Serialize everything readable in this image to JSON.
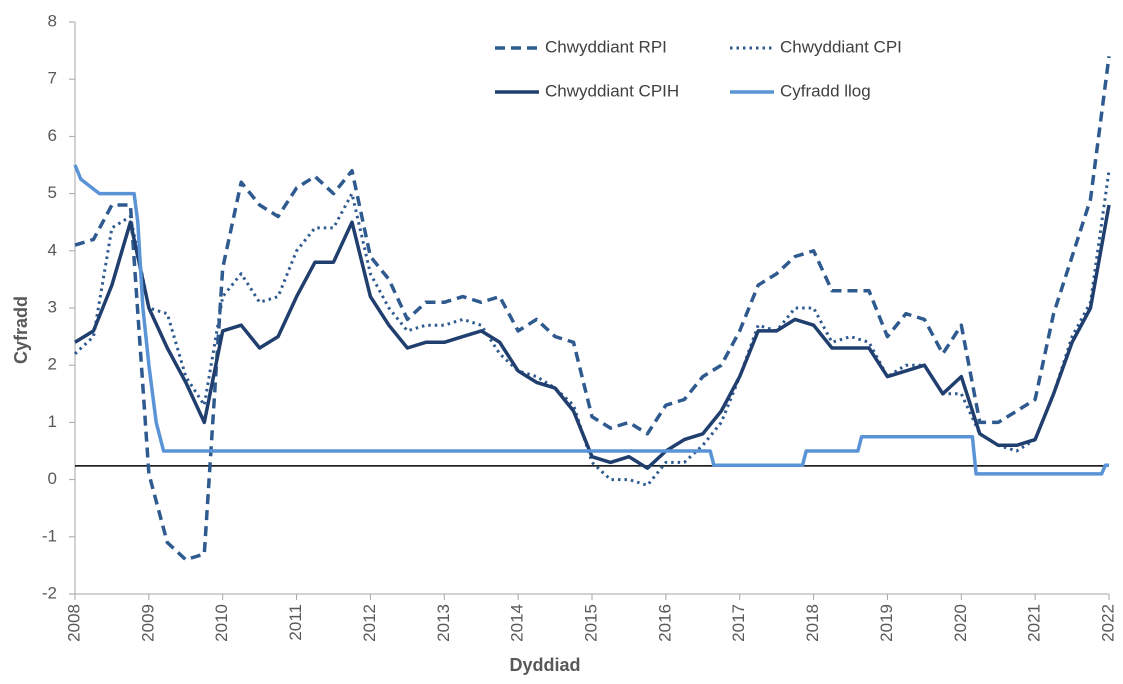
{
  "chart_data": {
    "type": "line",
    "x_label": "Dyddiad",
    "y_label": "Cyfradd",
    "xlim": [
      2008,
      2022
    ],
    "xticks": [
      2008,
      2009,
      2010,
      2011,
      2012,
      2013,
      2014,
      2015,
      2016,
      2017,
      2018,
      2019,
      2020,
      2021,
      2022
    ],
    "ylim": [
      -2,
      8
    ],
    "yticks": [
      -2,
      -1,
      0,
      1,
      2,
      3,
      4,
      5,
      6,
      7,
      8
    ],
    "grid": false,
    "legend": "top",
    "reference_line": 0.24,
    "x": [
      2008,
      2008.25,
      2008.5,
      2008.75,
      2009,
      2009.25,
      2009.5,
      2009.75,
      2010,
      2010.25,
      2010.5,
      2010.75,
      2011,
      2011.25,
      2011.5,
      2011.75,
      2012,
      2012.25,
      2012.5,
      2012.75,
      2013,
      2013.25,
      2013.5,
      2013.75,
      2014,
      2014.25,
      2014.5,
      2014.75,
      2015,
      2015.25,
      2015.5,
      2015.75,
      2016,
      2016.25,
      2016.5,
      2016.75,
      2017,
      2017.25,
      2017.5,
      2017.75,
      2018,
      2018.25,
      2018.5,
      2018.75,
      2019,
      2019.25,
      2019.5,
      2019.75,
      2020,
      2020.25,
      2020.5,
      2020.75,
      2021,
      2021.25,
      2021.5,
      2021.75,
      2022
    ],
    "series": [
      {
        "name": "Chwyddiant RPI",
        "color": "#2f5a8f",
        "dash": "dashed",
        "values": [
          4.1,
          4.2,
          4.8,
          4.8,
          0.1,
          -1.1,
          -1.4,
          -1.3,
          3.7,
          5.2,
          4.8,
          4.6,
          5.1,
          5.3,
          5.0,
          5.4,
          3.9,
          3.5,
          2.8,
          3.1,
          3.1,
          3.2,
          3.1,
          3.2,
          2.6,
          2.8,
          2.5,
          2.4,
          1.1,
          0.9,
          1.0,
          0.8,
          1.3,
          1.4,
          1.8,
          2.0,
          2.6,
          3.4,
          3.6,
          3.9,
          4.0,
          3.3,
          3.3,
          3.3,
          2.5,
          2.9,
          2.8,
          2.2,
          2.7,
          1.0,
          1.0,
          1.2,
          1.4,
          2.9,
          3.9,
          4.9,
          7.4
        ]
      },
      {
        "name": "Chwyddiant CPI",
        "color": "#2f5a8f",
        "dash": "dotted",
        "values": [
          2.2,
          2.5,
          4.4,
          4.6,
          3.0,
          2.9,
          1.8,
          1.3,
          3.2,
          3.6,
          3.1,
          3.2,
          4.0,
          4.4,
          4.4,
          5.0,
          3.6,
          3.0,
          2.6,
          2.7,
          2.7,
          2.8,
          2.7,
          2.2,
          1.9,
          1.8,
          1.6,
          1.3,
          0.3,
          0.0,
          0.0,
          -0.1,
          0.3,
          0.3,
          0.6,
          1.0,
          1.8,
          2.7,
          2.6,
          3.0,
          3.0,
          2.4,
          2.5,
          2.4,
          1.8,
          2.0,
          2.0,
          1.5,
          1.5,
          0.8,
          0.6,
          0.5,
          0.7,
          1.5,
          2.5,
          3.1,
          5.4
        ]
      },
      {
        "name": "Chwyddiant CPIH",
        "color": "#203f6e",
        "dash": "solid",
        "values": [
          2.4,
          2.6,
          3.4,
          4.5,
          3.0,
          2.3,
          1.7,
          1.0,
          2.6,
          2.7,
          2.3,
          2.5,
          3.2,
          3.8,
          3.8,
          4.5,
          3.2,
          2.7,
          2.3,
          2.4,
          2.4,
          2.5,
          2.6,
          2.4,
          1.9,
          1.7,
          1.6,
          1.2,
          0.4,
          0.3,
          0.4,
          0.2,
          0.5,
          0.7,
          0.8,
          1.2,
          1.8,
          2.6,
          2.6,
          2.8,
          2.7,
          2.3,
          2.3,
          2.3,
          1.8,
          1.9,
          2.0,
          1.5,
          1.8,
          0.8,
          0.6,
          0.6,
          0.7,
          1.5,
          2.4,
          3.0,
          4.8
        ]
      },
      {
        "name": "Cyfradd llog",
        "color": "#5a94d6",
        "dash": "solid",
        "x": [
          2008,
          2008.08,
          2008.33,
          2008.8,
          2008.85,
          2008.92,
          2009,
          2009.1,
          2009.2,
          2016.6,
          2016.65,
          2017.85,
          2017.9,
          2018.6,
          2018.65,
          2020.15,
          2020.2,
          2021.9,
          2021.95,
          2022
        ],
        "values": [
          5.5,
          5.25,
          5.0,
          5.0,
          4.5,
          3.0,
          2.0,
          1.0,
          0.5,
          0.5,
          0.25,
          0.25,
          0.5,
          0.5,
          0.75,
          0.75,
          0.1,
          0.1,
          0.25,
          0.25
        ]
      }
    ]
  }
}
